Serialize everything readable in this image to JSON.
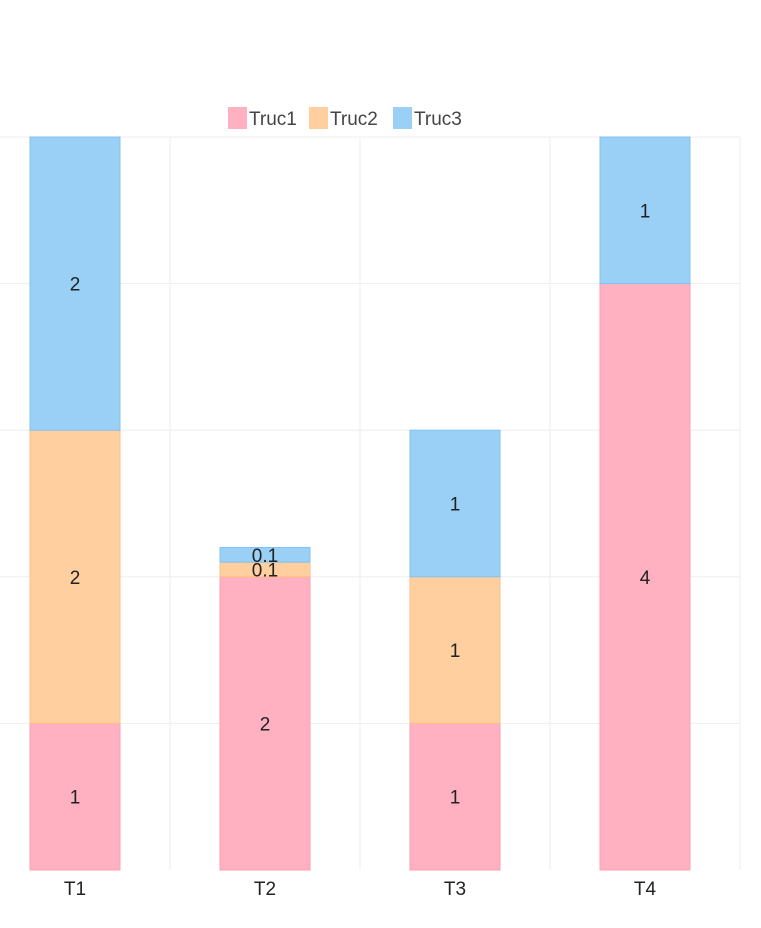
{
  "chart_data": {
    "type": "bar",
    "stacked": true,
    "categories": [
      "T1",
      "T2",
      "T3",
      "T4"
    ],
    "series": [
      {
        "name": "Truc1",
        "values": [
          1,
          2,
          1,
          4
        ],
        "labels": [
          "1",
          "2",
          "1",
          "4"
        ],
        "color": "#ffb1c1",
        "border": "#ff9fb3"
      },
      {
        "name": "Truc2",
        "values": [
          2,
          0.1,
          1,
          0
        ],
        "labels": [
          "2",
          "0.1",
          "1",
          ""
        ],
        "color": "#ffcf9f",
        "border": "#ffbf85"
      },
      {
        "name": "Truc3",
        "values": [
          2,
          0.1,
          1,
          1
        ],
        "labels": [
          "2",
          "0.1",
          "1",
          "1"
        ],
        "color": "#9ad0f5",
        "border": "#7fc3f0"
      }
    ],
    "ylim": [
      0,
      5
    ],
    "grid": true,
    "legend": "top"
  }
}
